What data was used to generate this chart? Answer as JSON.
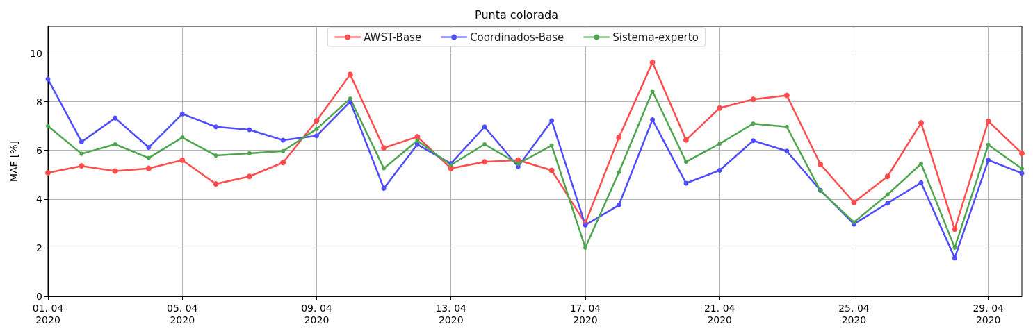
{
  "chart_data": {
    "type": "line",
    "title": "Punta colorada",
    "ylabel": "MAE [%]",
    "categories": [
      "01. 04\n2020",
      null,
      null,
      null,
      "05. 04\n2020",
      null,
      null,
      null,
      "09. 04\n2020",
      null,
      null,
      null,
      "13. 04\n2020",
      null,
      null,
      null,
      "17. 04\n2020",
      null,
      null,
      null,
      "21. 04\n2020",
      null,
      null,
      null,
      "25. 04\n2020",
      null,
      null,
      null,
      "29. 04\n2020",
      null
    ],
    "series": [
      {
        "name": "AWST-Base",
        "color": "#ff4d4d",
        "values": [
          5.08,
          5.36,
          5.15,
          5.26,
          5.6,
          4.62,
          4.93,
          5.5,
          7.22,
          9.12,
          6.1,
          6.56,
          5.26,
          5.53,
          5.6,
          5.18,
          3.0,
          6.53,
          9.62,
          6.43,
          7.74,
          8.1,
          8.26,
          5.43,
          3.86,
          4.93,
          7.13,
          2.76,
          7.2,
          5.88
        ]
      },
      {
        "name": "Coordinados-Base",
        "color": "#4d4dff",
        "values": [
          8.93,
          6.35,
          7.33,
          6.12,
          7.5,
          6.97,
          6.85,
          6.42,
          6.6,
          8.0,
          4.44,
          6.24,
          5.46,
          6.97,
          5.33,
          7.22,
          2.93,
          3.75,
          7.26,
          4.65,
          5.18,
          6.4,
          5.97,
          4.36,
          2.97,
          3.83,
          4.67,
          1.58,
          5.6,
          5.06
        ]
      },
      {
        "name": "Sistema-experto",
        "color": "#4da64d",
        "values": [
          7.0,
          5.86,
          6.25,
          5.69,
          6.53,
          5.79,
          5.88,
          5.97,
          6.88,
          8.13,
          5.26,
          6.4,
          5.4,
          6.25,
          5.45,
          6.2,
          2.0,
          5.1,
          8.43,
          5.53,
          6.27,
          7.1,
          6.97,
          4.34,
          3.05,
          4.18,
          5.45,
          2.0,
          6.23,
          5.25
        ]
      }
    ],
    "ylim": [
      0,
      11.1
    ],
    "yticks": [
      0,
      2,
      4,
      6,
      8,
      10
    ],
    "grid": true,
    "legend": "top",
    "marker": "circle",
    "line_style": "solid"
  }
}
